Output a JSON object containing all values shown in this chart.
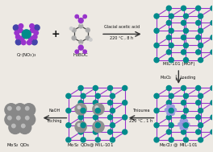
{
  "bg_color": "#ede9e3",
  "teal": "#008B8B",
  "purple": "#9933CC",
  "gray": "#909090",
  "blue_light": "#9999DD",
  "blue_mol": "#6677BB",
  "text_color": "#111111",
  "mol1_label": "Cr(NO$_3$)$_3$",
  "mol2_label": "H$_2$BDC",
  "mof_label": "MIL-101 (MOF)",
  "mof_label2": "MoCl$_2$ @ MIL-101",
  "qd_label": "MoS$_2$ QDs",
  "qdm_label": "MoS$_2$ QDs@ MIL-101",
  "arrow1_text1": "Glacial acetic acid",
  "arrow1_text2": "220 °C , 8 h",
  "arrow2_text1": "MoCl$_2$",
  "arrow2_text2": "Loading",
  "arrow3_text1": "NaOH",
  "arrow3_text2": "Etching",
  "arrow4_text1": "Thiourea",
  "arrow4_text2": "220 °C , 1 h",
  "figw": 2.64,
  "figh": 1.89,
  "dpi": 100
}
